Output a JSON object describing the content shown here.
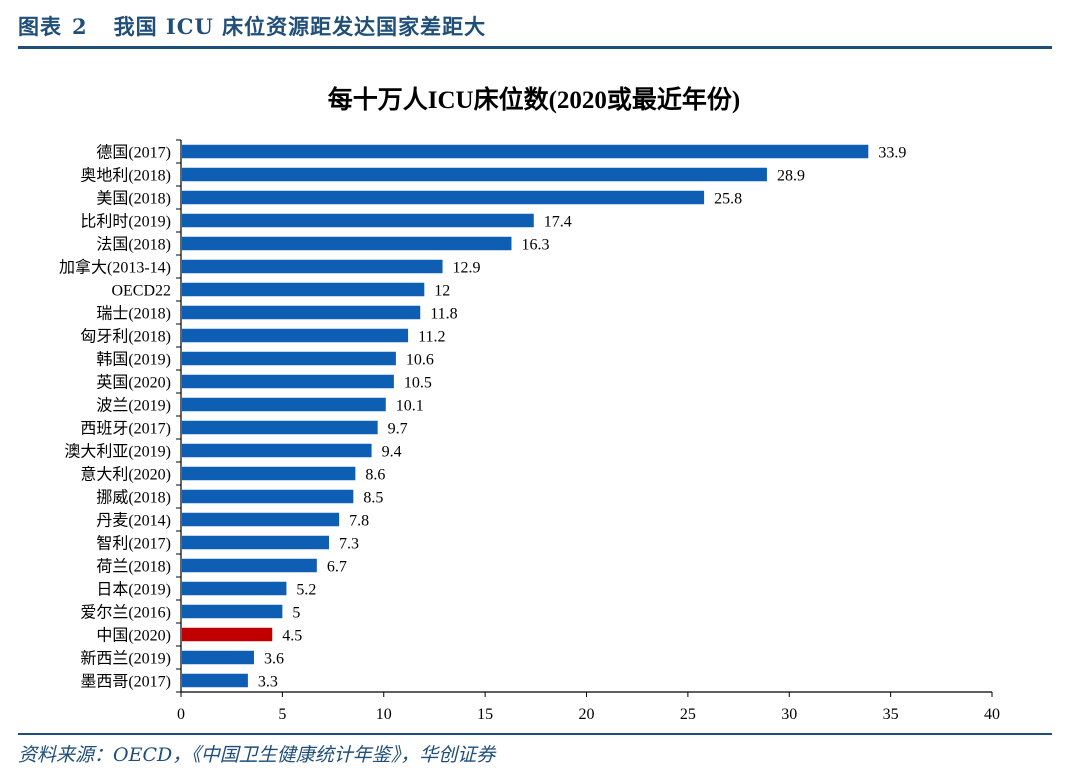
{
  "figure": {
    "label": "图表",
    "number": "2",
    "title": "我国 ICU 床位资源距发达国家差距大",
    "source": "资料来源：OECD，《中国卫生健康统计年鉴》，华创证券"
  },
  "colors": {
    "bar": "#0e5fb4",
    "highlight": "#c00000",
    "header": "#1f4e79"
  },
  "chart_data": {
    "type": "bar",
    "orientation": "horizontal",
    "title": "每十万人ICU床位数(2020或最近年份)",
    "xlim": [
      0,
      40
    ],
    "xticks": [
      0,
      5,
      10,
      15,
      20,
      25,
      30,
      35,
      40
    ],
    "grid": false,
    "categories": [
      "德国(2017)",
      "奥地利(2018)",
      "美国(2018)",
      "比利时(2019)",
      "法国(2018)",
      "加拿大(2013-14)",
      "OECD22",
      "瑞士(2018)",
      "匈牙利(2018)",
      "韩国(2019)",
      "英国(2020)",
      "波兰(2019)",
      "西班牙(2017)",
      "澳大利亚(2019)",
      "意大利(2020)",
      "挪威(2018)",
      "丹麦(2014)",
      "智利(2017)",
      "荷兰(2018)",
      "日本(2019)",
      "爱尔兰(2016)",
      "中国(2020)",
      "新西兰(2019)",
      "墨西哥(2017)"
    ],
    "values": [
      33.9,
      28.9,
      25.8,
      17.4,
      16.3,
      12.9,
      12,
      11.8,
      11.2,
      10.6,
      10.5,
      10.1,
      9.7,
      9.4,
      8.6,
      8.5,
      7.8,
      7.3,
      6.7,
      5.2,
      5,
      4.5,
      3.6,
      3.3
    ],
    "value_labels": [
      "33.9",
      "28.9",
      "25.8",
      "17.4",
      "16.3",
      "12.9",
      "12",
      "11.8",
      "11.2",
      "10.6",
      "10.5",
      "10.1",
      "9.7",
      "9.4",
      "8.6",
      "8.5",
      "7.8",
      "7.3",
      "6.7",
      "5.2",
      "5",
      "4.5",
      "3.6",
      "3.3"
    ],
    "highlight_category": "中国(2020)"
  }
}
